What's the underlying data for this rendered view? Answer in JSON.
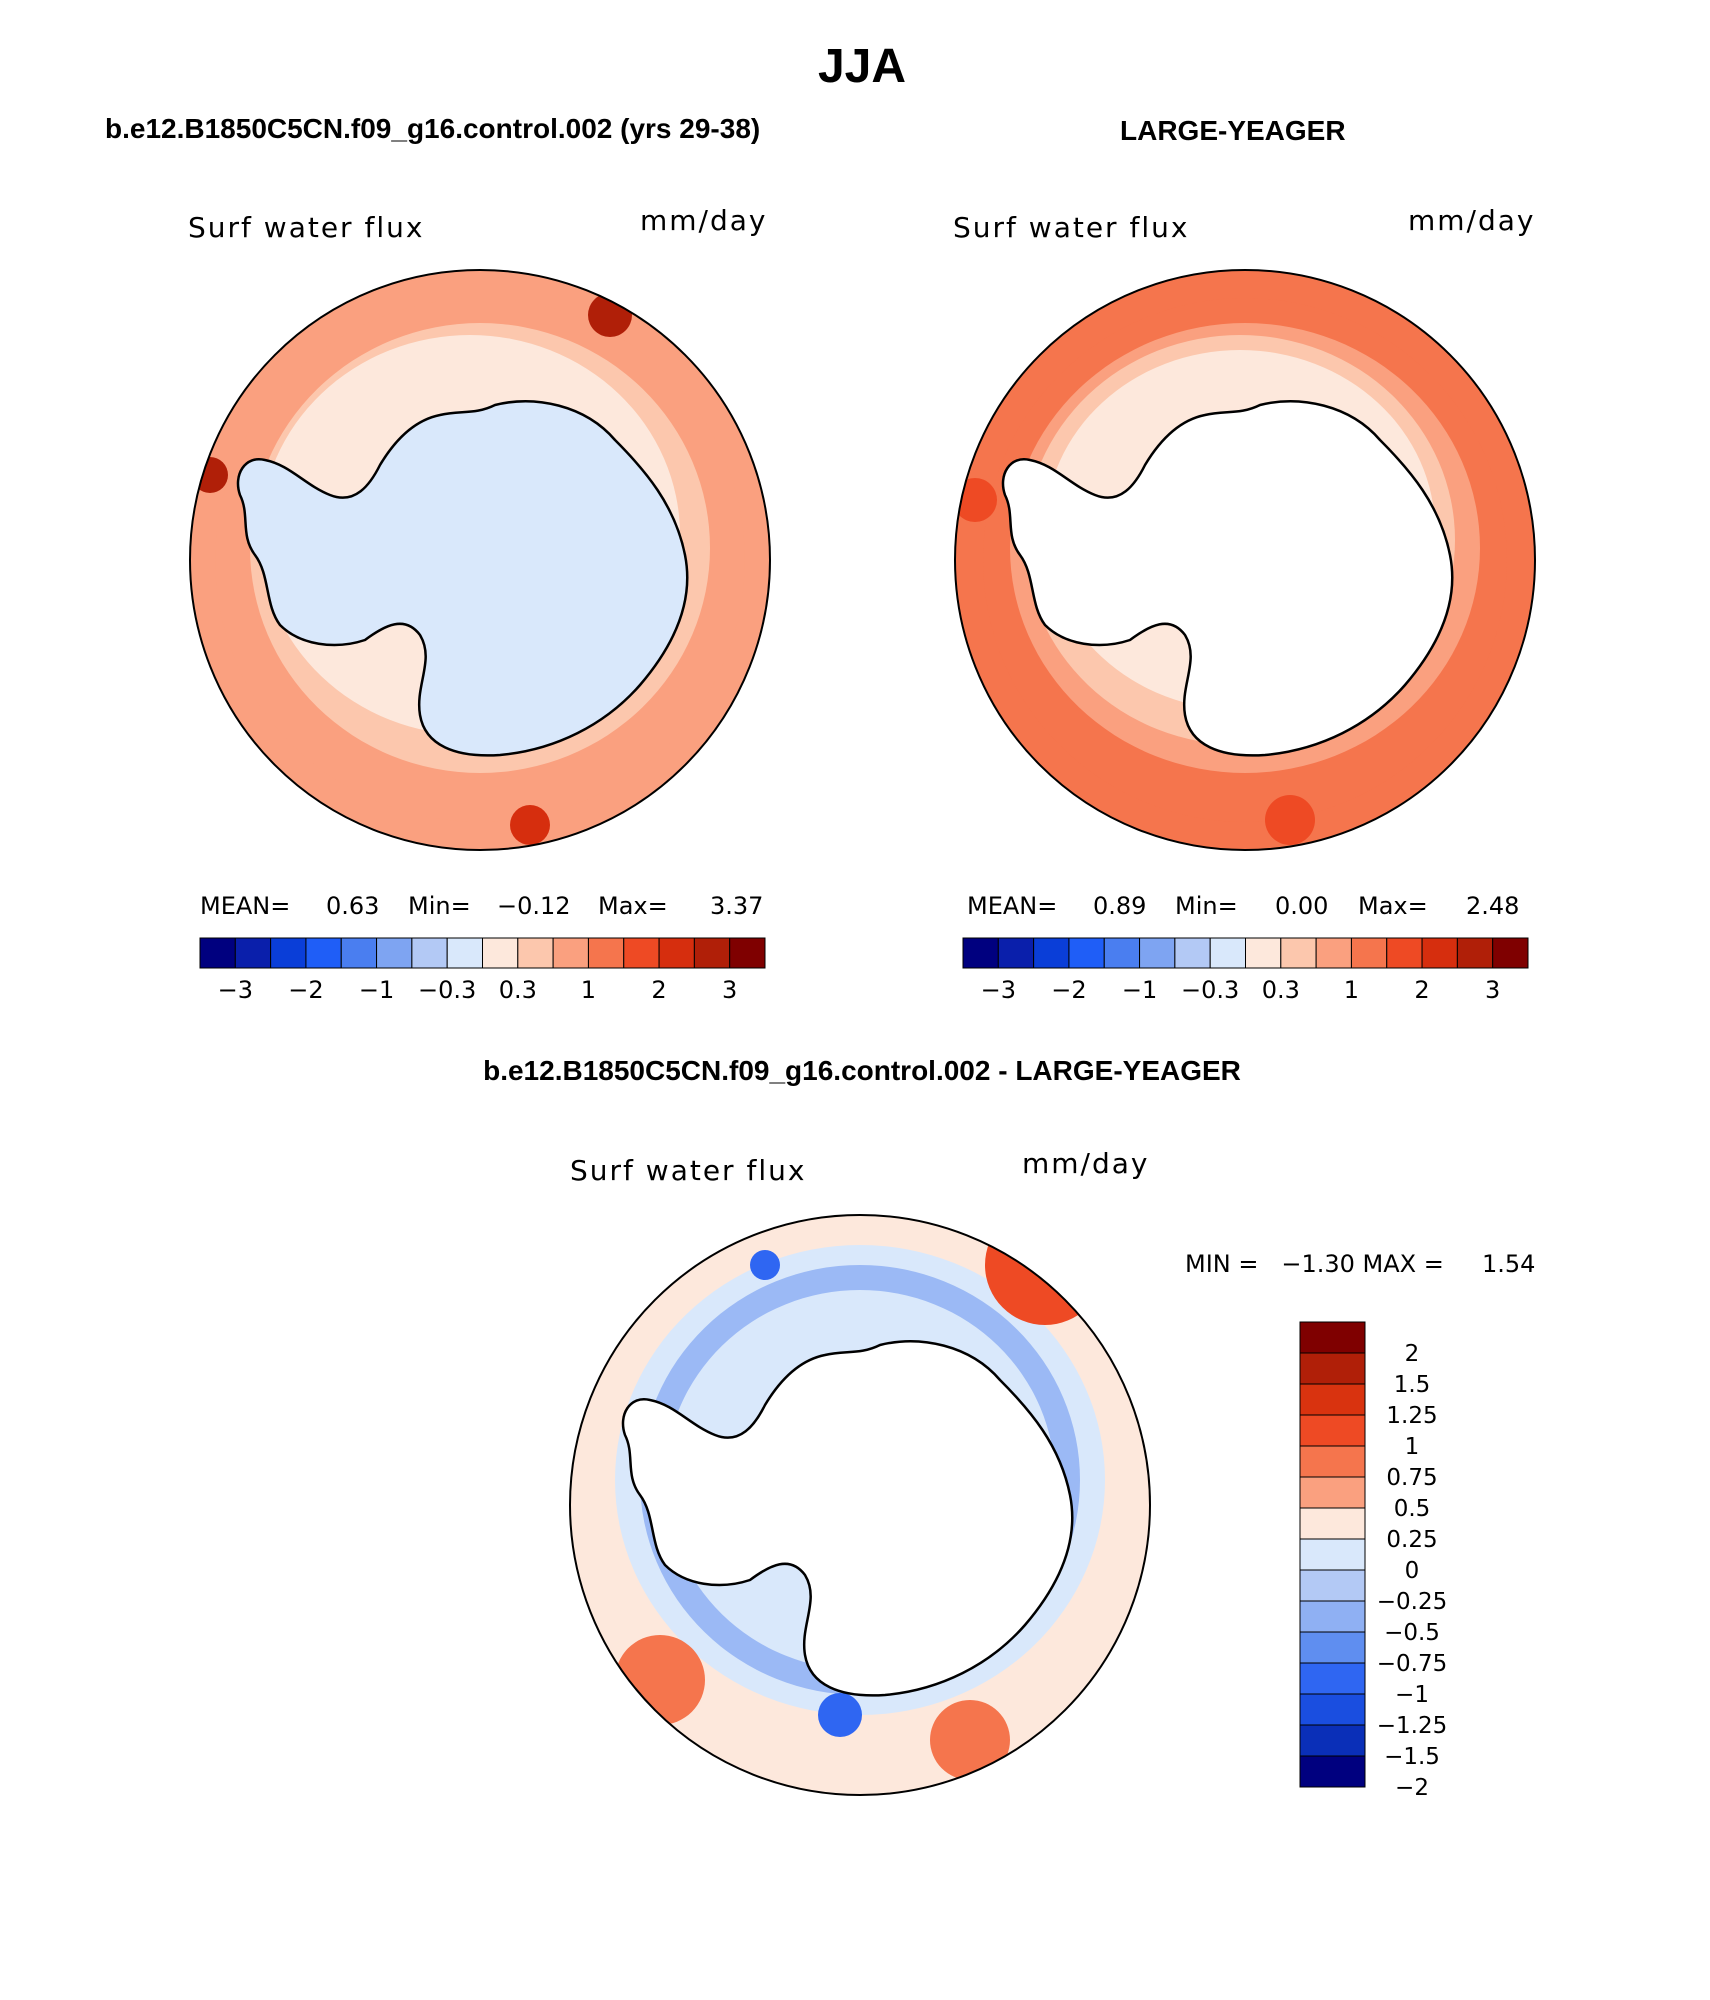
{
  "page_title": "JJA",
  "panels": {
    "model": {
      "header": "b.e12.B1850C5CN.f09_g16.control.002 (yrs 29-38)",
      "variable": "Surf water flux",
      "units": "mm/day",
      "stats": {
        "mean_label": "MEAN=",
        "mean": "0.63",
        "min_label": "Min=",
        "min": "−0.12",
        "max_label": "Max=",
        "max": "3.37"
      },
      "fields": {
        "ocean_level": 5,
        "antarctica_level": 6
      }
    },
    "obs": {
      "header": "LARGE-YEAGER",
      "variable": "Surf water flux",
      "units": "mm/day",
      "stats": {
        "mean_label": "MEAN=",
        "mean": "0.89",
        "min_label": "Min=",
        "min": "0.00",
        "max_label": "Max=",
        "max": "2.48"
      },
      "fields": {
        "ocean_level": 6,
        "antarctica_level": "white"
      }
    },
    "diff": {
      "header": "b.e12.B1850C5CN.f09_g16.control.002 - LARGE-YEAGER",
      "variable": "Surf water flux",
      "units": "mm/day",
      "minmax_text": "MIN =   −1.30 MAX =     1.54"
    }
  },
  "colorbar_abs": {
    "colors": [
      "#00007f",
      "#0a1fab",
      "#0a3ed8",
      "#1f5ef7",
      "#4a7ef0",
      "#7ea4f2",
      "#b3c9f5",
      "#d9e8fb",
      "#fde8dc",
      "#fcc7ad",
      "#faa07f",
      "#f5754d",
      "#ee4a24",
      "#d62e0e",
      "#b01f08",
      "#7f0000"
    ],
    "tick_labels": [
      "−3",
      "−2",
      "−1",
      "−0.3",
      "0.3",
      "1",
      "2",
      "3"
    ]
  },
  "colorbar_diff": {
    "colors": [
      "#7f0000",
      "#b01f08",
      "#d9330f",
      "#ee4a24",
      "#f5754d",
      "#faa07f",
      "#fde8dc",
      "#d9e8fb",
      "#b3c9f5",
      "#8fb0f3",
      "#5f8ef0",
      "#2f66f2",
      "#1a4ee0",
      "#0a2fb8",
      "#00007f"
    ],
    "labels": [
      "2",
      "1.5",
      "1.25",
      "1",
      "0.75",
      "0.5",
      "0.25",
      "0",
      "−0.25",
      "−0.5",
      "−0.75",
      "−1",
      "−1.25",
      "−1.5",
      "−2"
    ]
  },
  "colors": {
    "land_outline": "#000000",
    "page_background": "#ffffff"
  }
}
